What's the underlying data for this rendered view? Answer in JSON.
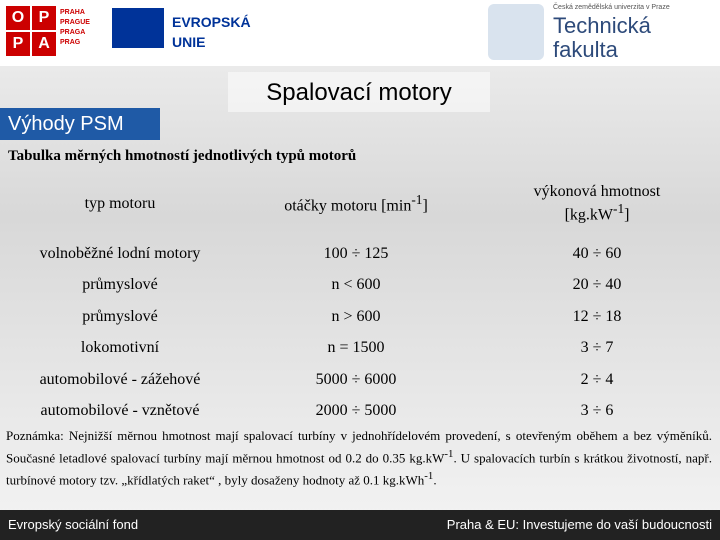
{
  "header": {
    "opp_letters": [
      "O",
      "P",
      "P",
      "A"
    ],
    "praha": [
      "PRAHA",
      "PRAGUE",
      "PRAGA",
      "PRAG"
    ],
    "eu": [
      "EVROPSKÁ",
      "UNIE"
    ],
    "university": "Česká zemědělská univerzita v Praze",
    "faculty": [
      "Technická",
      "fakulta"
    ]
  },
  "title": "Spalovací motory",
  "section": "Výhody PSM",
  "table": {
    "caption": "Tabulka měrných hmotností jednotlivých typů motorů",
    "columns": [
      [
        "typ motoru"
      ],
      [
        "otáčky motoru [min",
        "-1",
        "]"
      ],
      [
        "výkonová hmotnost",
        "[kg.kW",
        "-1",
        "]"
      ]
    ],
    "rows": [
      [
        "volnoběžné lodní motory",
        "100 ÷ 125",
        "40 ÷ 60"
      ],
      [
        "průmyslové",
        "n < 600",
        "20 ÷ 40"
      ],
      [
        "průmyslové",
        "n > 600",
        "12 ÷ 18"
      ],
      [
        "lokomotivní",
        "n = 1500",
        "3 ÷ 7"
      ],
      [
        "automobilové - zážehové",
        "5000 ÷ 6000",
        "2 ÷ 4"
      ],
      [
        "automobilové - vznětové",
        "2000 ÷ 5000",
        "3 ÷ 6"
      ]
    ]
  },
  "note": [
    "Poznámka: Nejnižší měrnou hmotnost mají spalovací turbíny v jednohřídelovém provedení, s otevřeným oběhem a bez výměníků. Současné letadlové spalovací turbíny mají měrnou hmotnost od 0.2 do 0.35 kg.kW",
    "-1",
    ". U spalovacích turbín s krátkou životností, např. turbínové motory tzv. „křídlatých raket“ , byly dosaženy hodnoty až 0.1 kg.kWh",
    "-1",
    "."
  ],
  "footer": {
    "left": "Evropský sociální fond",
    "right": "Praha & EU: Investujeme do vaší budoucnosti"
  }
}
